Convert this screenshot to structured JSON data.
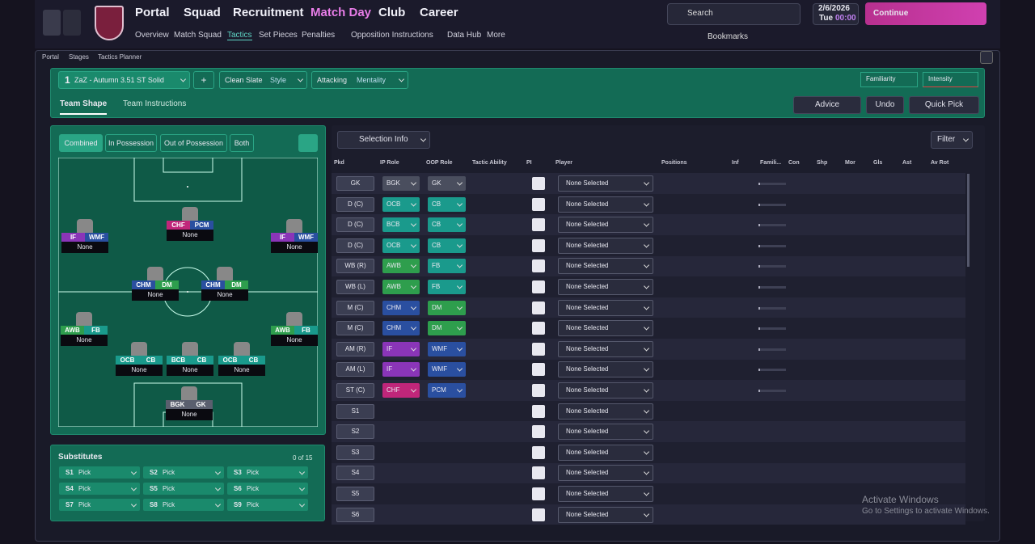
{
  "nav": {
    "main": [
      "Portal",
      "Squad",
      "Recruitment",
      "Match Day",
      "Club",
      "Career"
    ],
    "sub": [
      "Overview",
      "Match Squad",
      "Tactics",
      "Set Pieces",
      "Penalties",
      "Opposition Instructions",
      "Data Hub",
      "More"
    ],
    "search": "Search",
    "date": "2/6/2026",
    "day": "Tue",
    "time": "00:00",
    "continue": "Continue",
    "bookmarks": "Bookmarks"
  },
  "breadcrumb": [
    "Portal",
    "Stages",
    "Tactics Planner"
  ],
  "tactic": {
    "slot": "1",
    "name": "ZaZ - Autumn 3.51 ST Solid",
    "add": "+",
    "style_value": "Clean Slate",
    "style_label": "Style",
    "mentality_value": "Attacking",
    "mentality_label": "Mentality",
    "familiarity": "Familiarity",
    "intensity": "Intensity"
  },
  "tabs": [
    "Team Shape",
    "Team Instructions"
  ],
  "actions": [
    "Advice",
    "Undo",
    "Quick Pick"
  ],
  "view_modes": [
    "Combined",
    "In Possession",
    "Out of Possession",
    "Both"
  ],
  "pitch_players": [
    {
      "ip": "CHF",
      "oop": "PCM",
      "player": "None",
      "ip_color": "#c0267a",
      "oop_color": "#2a4fa0"
    },
    {
      "ip": "IF",
      "oop": "WMF",
      "player": "None",
      "ip_color": "#8a35b8",
      "oop_color": "#2a4fa0"
    },
    {
      "ip": "IF",
      "oop": "WMF",
      "player": "None",
      "ip_color": "#8a35b8",
      "oop_color": "#2a4fa0"
    },
    {
      "ip": "CHM",
      "oop": "DM",
      "player": "None",
      "ip_color": "#2a4fa0",
      "oop_color": "#2e9e4d"
    },
    {
      "ip": "CHM",
      "oop": "DM",
      "player": "None",
      "ip_color": "#2a4fa0",
      "oop_color": "#2e9e4d"
    },
    {
      "ip": "AWB",
      "oop": "FB",
      "player": "None",
      "ip_color": "#2e9e4d",
      "oop_color": "#1a9a8c"
    },
    {
      "ip": "AWB",
      "oop": "FB",
      "player": "None",
      "ip_color": "#2e9e4d",
      "oop_color": "#1a9a8c"
    },
    {
      "ip": "OCB",
      "oop": "CB",
      "player": "None",
      "ip_color": "#1a9a8c",
      "oop_color": "#1a9a8c"
    },
    {
      "ip": "BCB",
      "oop": "CB",
      "player": "None",
      "ip_color": "#1a9a8c",
      "oop_color": "#1a9a8c"
    },
    {
      "ip": "OCB",
      "oop": "CB",
      "player": "None",
      "ip_color": "#1a9a8c",
      "oop_color": "#1a9a8c"
    },
    {
      "ip": "BGK",
      "oop": "GK",
      "player": "None",
      "ip_color": "#5a5f6e",
      "oop_color": "#5a5f6e"
    }
  ],
  "substitutes": {
    "title": "Substitutes",
    "count": "0 of 15",
    "slots": [
      {
        "slot": "S1",
        "value": "Pick"
      },
      {
        "slot": "S2",
        "value": "Pick"
      },
      {
        "slot": "S3",
        "value": "Pick"
      },
      {
        "slot": "S4",
        "value": "Pick"
      },
      {
        "slot": "S5",
        "value": "Pick"
      },
      {
        "slot": "S6",
        "value": "Pick"
      },
      {
        "slot": "S7",
        "value": "Pick"
      },
      {
        "slot": "S8",
        "value": "Pick"
      },
      {
        "slot": "S9",
        "value": "Pick"
      }
    ]
  },
  "table": {
    "selection_info": "Selection Info",
    "filter": "Filter",
    "headers": [
      "Pkd",
      "IP Role",
      "OOP Role",
      "Tactic Ability",
      "PI",
      "Player",
      "Positions",
      "Inf",
      "Famili...",
      "Con",
      "Shp",
      "Mor",
      "Gls",
      "Ast",
      "Av Rot"
    ],
    "rows": [
      {
        "pos": "GK",
        "ip": "BGK",
        "oop": "GK",
        "player": "None Selected",
        "ip_color": "#4a4e5e",
        "oop_color": "#4a4e5e"
      },
      {
        "pos": "D (C)",
        "ip": "OCB",
        "oop": "CB",
        "player": "None Selected",
        "ip_color": "#1a9a8c",
        "oop_color": "#1a9a8c"
      },
      {
        "pos": "D (C)",
        "ip": "BCB",
        "oop": "CB",
        "player": "None Selected",
        "ip_color": "#1a9a8c",
        "oop_color": "#1a9a8c"
      },
      {
        "pos": "D (C)",
        "ip": "OCB",
        "oop": "CB",
        "player": "None Selected",
        "ip_color": "#1a9a8c",
        "oop_color": "#1a9a8c"
      },
      {
        "pos": "WB (R)",
        "ip": "AWB",
        "oop": "FB",
        "player": "None Selected",
        "ip_color": "#2e9e4d",
        "oop_color": "#1a9a8c"
      },
      {
        "pos": "WB (L)",
        "ip": "AWB",
        "oop": "FB",
        "player": "None Selected",
        "ip_color": "#2e9e4d",
        "oop_color": "#1a9a8c"
      },
      {
        "pos": "M (C)",
        "ip": "CHM",
        "oop": "DM",
        "player": "None Selected",
        "ip_color": "#2a4fa0",
        "oop_color": "#2e9e4d"
      },
      {
        "pos": "M (C)",
        "ip": "CHM",
        "oop": "DM",
        "player": "None Selected",
        "ip_color": "#2a4fa0",
        "oop_color": "#2e9e4d"
      },
      {
        "pos": "AM (R)",
        "ip": "IF",
        "oop": "WMF",
        "player": "None Selected",
        "ip_color": "#8a35b8",
        "oop_color": "#2a4fa0"
      },
      {
        "pos": "AM (L)",
        "ip": "IF",
        "oop": "WMF",
        "player": "None Selected",
        "ip_color": "#8a35b8",
        "oop_color": "#2a4fa0"
      },
      {
        "pos": "ST (C)",
        "ip": "CHF",
        "oop": "PCM",
        "player": "None Selected",
        "ip_color": "#c0267a",
        "oop_color": "#2a4fa0"
      },
      {
        "pos": "S1",
        "player": "None Selected"
      },
      {
        "pos": "S2",
        "player": "None Selected"
      },
      {
        "pos": "S3",
        "player": "None Selected"
      },
      {
        "pos": "S4",
        "player": "None Selected"
      },
      {
        "pos": "S5",
        "player": "None Selected"
      },
      {
        "pos": "S6",
        "player": "None Selected"
      }
    ]
  },
  "watermark": {
    "title": "Activate Windows",
    "subtitle": "Go to Settings to activate Windows."
  }
}
